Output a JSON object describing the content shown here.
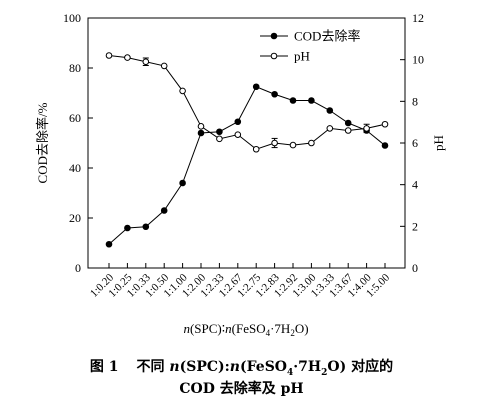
{
  "chart_data": {
    "type": "line",
    "categories": [
      "1:0.20",
      "1:0.25",
      "1:0.33",
      "1:0.50",
      "1:1.00",
      "1:2.00",
      "1:2.33",
      "1:2.67",
      "1:2.75",
      "1:2.83",
      "1:2.92",
      "1:3.00",
      "1:3.33",
      "1:3.67",
      "1:4.00",
      "1:5.00"
    ],
    "xlabel_pre": "n",
    "xlabel_mid": "(SPC)∶",
    "xlabel_n2": "n",
    "xlabel_f1": "(FeSO",
    "xlabel_s4": "4",
    "xlabel_f2": "·7H",
    "xlabel_s2": "2",
    "xlabel_f3": "O)",
    "ylabel_left": "COD去除率/%",
    "ylabel_right": "pH",
    "ylim_left": [
      0,
      100
    ],
    "yticks_left": [
      0,
      20,
      40,
      60,
      80,
      100
    ],
    "ylim_right": [
      0,
      12
    ],
    "yticks_right": [
      0,
      2,
      4,
      6,
      8,
      10,
      12
    ],
    "legend_position": "top-right",
    "series": [
      {
        "name": "COD去除率",
        "axis": "left",
        "marker": "filled-circle",
        "values": [
          9.5,
          16,
          16.5,
          23,
          34,
          54,
          54.5,
          58.5,
          72.5,
          69.5,
          67,
          67,
          63,
          58,
          55,
          49
        ]
      },
      {
        "name": "pH",
        "axis": "right",
        "marker": "open-circle",
        "values": [
          10.2,
          10.1,
          9.9,
          9.7,
          8.5,
          6.8,
          6.2,
          6.4,
          5.7,
          6.0,
          5.9,
          6.0,
          6.7,
          6.6,
          6.7,
          6.9
        ],
        "error_bars": [
          0,
          0,
          0.18,
          0,
          0,
          0,
          0,
          0,
          0,
          0.22,
          0,
          0,
          0,
          0,
          0.2,
          0
        ]
      }
    ]
  },
  "caption": {
    "fig_num": "图 1",
    "line1_a": "不同 ",
    "line1_n1": "n",
    "line1_b": "(SPC):",
    "line1_n2": "n",
    "line1_c": "(FeSO",
    "line1_s4": "4",
    "line1_d": "·7H",
    "line1_s2": "2",
    "line1_e": "O) 对应的",
    "line2": "COD 去除率及 pH"
  }
}
